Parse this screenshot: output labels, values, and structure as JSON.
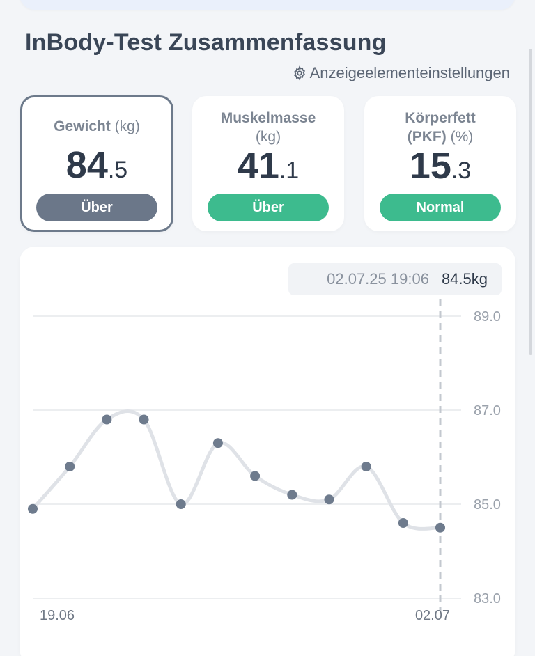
{
  "title": "InBody-Test Zusammenfassung",
  "settings_link": {
    "label": "Anzeigeelementeinstellungen",
    "icon": "gear-icon"
  },
  "metrics": [
    {
      "label": "Gewicht",
      "unit": "(kg)",
      "value_int": "84",
      "value_dec": ".5",
      "status": "Über",
      "status_color": "#6b7789",
      "selected": true
    },
    {
      "label": "Muskelmasse",
      "unit": "(kg)",
      "value_int": "41",
      "value_dec": ".1",
      "status": "Über",
      "status_color": "#3dbb8e",
      "selected": false
    },
    {
      "label": "Körperfett",
      "label_line2": "(PKF)",
      "unit": "(%)",
      "value_int": "15",
      "value_dec": ".3",
      "status": "Normal",
      "status_color": "#3dbb8e",
      "selected": false
    }
  ],
  "tooltip": {
    "date": "02.07.25 19:06",
    "value": "84.5kg"
  },
  "chart_data": {
    "type": "line",
    "series": [
      {
        "values": [
          84.9,
          85.8,
          86.8,
          86.8,
          85.0,
          86.3,
          85.6,
          85.2,
          85.1,
          85.8,
          84.6,
          84.5
        ]
      }
    ],
    "y_ticks": [
      "89.0",
      "87.0",
      "85.0",
      "83.0"
    ],
    "ylim": [
      83.0,
      89.0
    ],
    "x_labels": [
      "19.06",
      "02.07"
    ],
    "selected_index": 11,
    "line_color": "#dfe2e7",
    "point_color": "#6e7b8d"
  }
}
